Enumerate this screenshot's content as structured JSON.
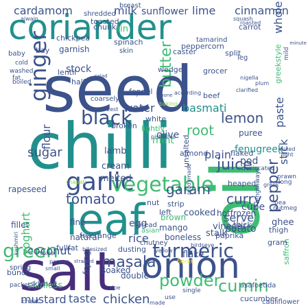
{
  "palette": {
    "background": "#ffffff",
    "teal": "#21908d",
    "green": "#3fbc73",
    "light_green": "#8fd744",
    "yellow": "#fde725",
    "indigo": "#3b528b",
    "purple": "#472d7b",
    "dark": "#440154"
  },
  "words": [
    {
      "text": "seed",
      "color": "#3b528b"
    },
    {
      "text": "chilli",
      "color": "#21908d"
    },
    {
      "text": "coriander",
      "color": "#21908d"
    },
    {
      "text": "oil",
      "color": "#3fbc73"
    },
    {
      "text": "salt",
      "color": "#472d7b"
    },
    {
      "text": "leaf",
      "color": "#21908d"
    },
    {
      "text": "onion",
      "color": "#3b528b"
    },
    {
      "text": "garlic",
      "color": "#3b528b"
    },
    {
      "text": "ginger",
      "color": "#3b528b"
    },
    {
      "text": "vegetable",
      "color": "#3fbc73"
    },
    {
      "text": "black",
      "color": "#3b528b"
    },
    {
      "text": "turmeric",
      "color": "#3b528b"
    },
    {
      "text": "green",
      "color": "#3fbc73"
    },
    {
      "text": "powder",
      "color": "#3fbc73"
    },
    {
      "text": "cumin",
      "color": "#3fbc73"
    },
    {
      "text": "masala",
      "color": "#3b528b"
    },
    {
      "text": "juice",
      "color": "#3b528b"
    },
    {
      "text": "garam",
      "color": "#3b528b"
    },
    {
      "text": "pepper",
      "color": "#3b528b"
    },
    {
      "text": "curry",
      "color": "#3b528b"
    },
    {
      "text": "tomato",
      "color": "#3b528b"
    },
    {
      "text": "butter",
      "color": "#3fbc73"
    },
    {
      "text": "root",
      "color": "#3fbc73"
    },
    {
      "text": "lemon",
      "color": "#3b528b"
    },
    {
      "text": "coconut",
      "color": "#3b528b"
    },
    {
      "text": "chicken",
      "color": "#3b528b"
    },
    {
      "text": "mustard",
      "color": "#3b528b"
    },
    {
      "text": "taste",
      "color": "#3b528b"
    },
    {
      "text": "sugar",
      "color": "#3b528b"
    },
    {
      "text": "cardamom",
      "color": "#3b528b"
    },
    {
      "text": "cinnamon",
      "color": "#3b528b"
    },
    {
      "text": "water",
      "color": "#3b528b"
    },
    {
      "text": "rice",
      "color": "#3b528b"
    },
    {
      "text": "serve",
      "color": "#3b528b"
    },
    {
      "text": "plain",
      "color": "#3b528b"
    },
    {
      "text": "yoghurt",
      "color": "#3fbc73"
    },
    {
      "text": "flour",
      "color": "#3b528b"
    },
    {
      "text": "basmati",
      "color": "#21908d"
    },
    {
      "text": "paste",
      "color": "#3b528b"
    },
    {
      "text": "stick",
      "color": "#3b528b"
    },
    {
      "text": "fenugreek",
      "color": "#21908d"
    },
    {
      "text": "potato",
      "color": "#3b528b"
    },
    {
      "text": "pod",
      "color": "#3b528b"
    },
    {
      "text": "milk",
      "color": "#3b528b"
    },
    {
      "text": "lime",
      "color": "#3b528b"
    },
    {
      "text": "whole",
      "color": "#3b528b"
    },
    {
      "text": "sunflower",
      "color": "#3b528b"
    },
    {
      "text": "garnish",
      "color": "#3b528b"
    },
    {
      "text": "stock",
      "color": "#3b528b"
    },
    {
      "text": "cube",
      "color": "#3b528b"
    },
    {
      "text": "cooked",
      "color": "#3b528b"
    },
    {
      "text": "ghee",
      "color": "#3b528b"
    },
    {
      "text": "mint",
      "color": "#3fbc73"
    },
    {
      "text": "olive",
      "color": "#3b528b"
    },
    {
      "text": "lamb",
      "color": "#3b528b"
    },
    {
      "text": "cream",
      "color": "#3b528b"
    },
    {
      "text": "melted",
      "color": "#3b528b"
    },
    {
      "text": "egg",
      "color": "#3b528b"
    },
    {
      "text": "vinegar",
      "color": "#3b528b"
    },
    {
      "text": "hotfrozen",
      "color": "#3b528b"
    },
    {
      "text": "mango",
      "color": "#3b528b"
    },
    {
      "text": "brown",
      "color": "#3fbc73"
    },
    {
      "text": "flake",
      "color": "#3b528b"
    },
    {
      "text": "stalk",
      "color": "#3b528b"
    },
    {
      "text": "frying",
      "color": "#3b528b"
    },
    {
      "text": "skinless",
      "color": "#3fbc73"
    },
    {
      "text": "fillet",
      "color": "#3b528b"
    },
    {
      "text": "rapeseed",
      "color": "#3b528b"
    },
    {
      "text": "breast",
      "color": "#3b528b"
    },
    {
      "text": "chunk",
      "color": "#3b528b"
    },
    {
      "text": "tin",
      "color": "#3fbc73"
    },
    {
      "text": "chickpea",
      "color": "#3b528b"
    },
    {
      "text": "spinach",
      "color": "#3b528b"
    },
    {
      "text": "peppercorn",
      "color": "#3b528b"
    },
    {
      "text": "caster",
      "color": "#3b528b"
    },
    {
      "text": "split",
      "color": "#3b528b"
    },
    {
      "text": "lentil",
      "color": "#3b528b"
    },
    {
      "text": "half",
      "color": "#3b528b"
    },
    {
      "text": "beef",
      "color": "#3b528b"
    },
    {
      "text": "wedge",
      "color": "#3b528b"
    },
    {
      "text": "grocer",
      "color": "#3b528b"
    },
    {
      "text": "puree",
      "color": "#3b528b"
    },
    {
      "text": "greekstyle",
      "color": "#3fbc73"
    },
    {
      "text": "boneless",
      "color": "#3b528b"
    },
    {
      "text": "fine",
      "color": "#3b528b"
    },
    {
      "text": "natural",
      "color": "#3b528b"
    },
    {
      "text": "soaked",
      "color": "#3b528b"
    },
    {
      "text": "double",
      "color": "#3b528b"
    },
    {
      "text": "freerange",
      "color": "#3b528b"
    },
    {
      "text": "dusting",
      "color": "#3b528b"
    },
    {
      "text": "fullfat",
      "color": "#3b528b"
    },
    {
      "text": "thick",
      "color": "#3b528b"
    },
    {
      "text": "heaped",
      "color": "#3b528b"
    },
    {
      "text": "flaked",
      "color": "#3b528b"
    },
    {
      "text": "almond",
      "color": "#3b528b"
    },
    {
      "text": "unsalted",
      "color": "#3b528b"
    },
    {
      "text": "broken",
      "color": "#3b528b"
    },
    {
      "text": "lightly",
      "color": "#3fbc73"
    },
    {
      "text": "white",
      "color": "#3b528b"
    },
    {
      "text": "nut",
      "color": "#3b528b"
    },
    {
      "text": "strip",
      "color": "#3b528b"
    },
    {
      "text": "left",
      "color": "#3b528b"
    },
    {
      "text": "paprika",
      "color": "#3b528b"
    },
    {
      "text": "saffron",
      "color": "#3fbc73"
    },
    {
      "text": "cucumber",
      "color": "#3b528b"
    },
    {
      "text": "cauliflower",
      "color": "#3b528b"
    },
    {
      "text": "asafoetida",
      "color": "#3b528b"
    },
    {
      "text": "shredded",
      "color": "#3b528b"
    },
    {
      "text": "toasted",
      "color": "#3b528b"
    },
    {
      "text": "tamarind",
      "color": "#3b528b"
    },
    {
      "text": "carrot",
      "color": "#3b528b"
    },
    {
      "text": "skin",
      "color": "#3b528b"
    },
    {
      "text": "bay",
      "color": "#3b528b"
    },
    {
      "text": "fennel",
      "color": "#3b528b"
    },
    {
      "text": "bunch",
      "color": "#3b528b"
    },
    {
      "text": "spring",
      "color": "#3b528b"
    },
    {
      "text": "skinned",
      "color": "#3b528b"
    },
    {
      "text": "chaat",
      "color": "#3b528b"
    },
    {
      "text": "packet",
      "color": "#3b528b"
    },
    {
      "text": "chutney",
      "color": "#3b528b"
    },
    {
      "text": "bread",
      "color": "#3b528b"
    },
    {
      "text": "asian",
      "color": "#3fbc73"
    },
    {
      "text": "gram",
      "color": "#3b528b"
    },
    {
      "text": "thigh",
      "color": "#3b528b"
    },
    {
      "text": "leg",
      "color": "#3b528b"
    },
    {
      "text": "coarsely",
      "color": "#3b528b"
    },
    {
      "text": "baby",
      "color": "#3b528b"
    },
    {
      "text": "cold",
      "color": "#3b528b"
    },
    {
      "text": "washed",
      "color": "#3b528b"
    },
    {
      "text": "boiled",
      "color": "#3b528b"
    },
    {
      "text": "fat",
      "color": "#3b528b"
    },
    {
      "text": "mild",
      "color": "#3b528b"
    },
    {
      "text": "single",
      "color": "#3b528b"
    },
    {
      "text": "ripe",
      "color": "#3b528b"
    },
    {
      "text": "use",
      "color": "#3b528b"
    },
    {
      "text": "long",
      "color": "#3b528b"
    },
    {
      "text": "nutmeg",
      "color": "#3b528b"
    },
    {
      "text": "pea",
      "color": "#3b528b"
    },
    {
      "text": "prawn",
      "color": "#3b528b"
    },
    {
      "text": "greek",
      "color": "#3b528b"
    },
    {
      "text": "desiccated",
      "color": "#3b528b"
    },
    {
      "text": "lengthways",
      "color": "#3b528b"
    },
    {
      "text": "readymade",
      "color": "#3b528b"
    },
    {
      "text": "pistachio",
      "color": "#3b528b"
    },
    {
      "text": "floret",
      "color": "#fde725"
    },
    {
      "text": "bitesized",
      "color": "#3b528b"
    },
    {
      "text": "birdseye",
      "color": "#3b528b"
    },
    {
      "text": "yellow",
      "color": "#3b528b"
    },
    {
      "text": "roasted",
      "color": "#3b528b"
    },
    {
      "text": "nigella",
      "color": "#3b528b"
    },
    {
      "text": "clarified",
      "color": "#3b528b"
    },
    {
      "text": "according",
      "color": "#3b528b"
    },
    {
      "text": "baking",
      "color": "#8fd744"
    },
    {
      "text": "kashmiri",
      "color": "#3b528b"
    },
    {
      "text": "zest",
      "color": "#3b528b"
    },
    {
      "text": "chapati",
      "color": "#8fd744"
    },
    {
      "text": "paneer",
      "color": "#3b528b"
    },
    {
      "text": "small",
      "color": "#3b528b"
    },
    {
      "text": "spice",
      "color": "#3b528b"
    },
    {
      "text": "made",
      "color": "#3b528b"
    },
    {
      "text": "ajwain",
      "color": "#3b528b"
    },
    {
      "text": "squash",
      "color": "#3b528b"
    },
    {
      "text": "minute",
      "color": "#3b528b"
    },
    {
      "text": "boiling",
      "color": "#3b528b"
    },
    {
      "text": "bone",
      "color": "#3b528b"
    },
    {
      "text": "salad",
      "color": "#3b528b"
    },
    {
      "text": "plum",
      "color": "#3b528b"
    },
    {
      "text": "mixed",
      "color": "#3b528b"
    },
    {
      "text": "light",
      "color": "#3b528b"
    },
    {
      "text": "strained",
      "color": "#3b528b"
    },
    {
      "text": "pomegranate",
      "color": "#8fd744"
    },
    {
      "text": "few",
      "color": "#3b528b"
    },
    {
      "text": "raw",
      "color": "#3b528b"
    }
  ]
}
